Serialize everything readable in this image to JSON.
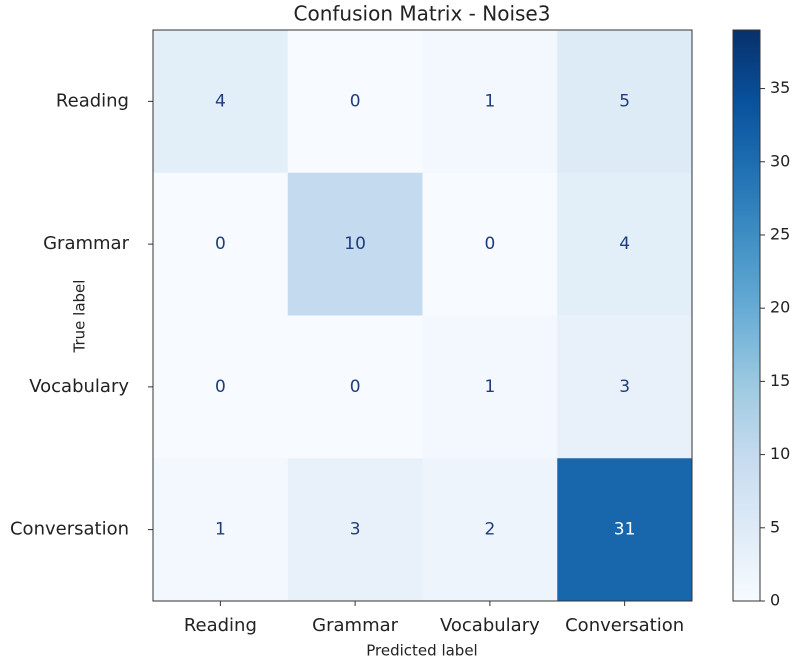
{
  "chart_data": {
    "type": "heatmap",
    "title": "Confusion Matrix - Noise3",
    "x_label": "Predicted label",
    "y_label": "True label",
    "x_categories": [
      "Reading",
      "Grammar",
      "Vocabulary",
      "Conversation"
    ],
    "y_categories": [
      "Reading",
      "Grammar",
      "Vocabulary",
      "Conversation"
    ],
    "values": [
      [
        4,
        0,
        1,
        5
      ],
      [
        0,
        10,
        0,
        4
      ],
      [
        0,
        0,
        1,
        3
      ],
      [
        1,
        3,
        2,
        31
      ]
    ],
    "clim": [
      0,
      39
    ],
    "cticks": [
      0,
      5,
      10,
      15,
      20,
      25,
      30,
      35
    ],
    "colormap": [
      "#f7fbff",
      "#deebf7",
      "#c6dbef",
      "#9ecae1",
      "#6baed6",
      "#4292c6",
      "#2171b5",
      "#08519c",
      "#08306b"
    ]
  }
}
